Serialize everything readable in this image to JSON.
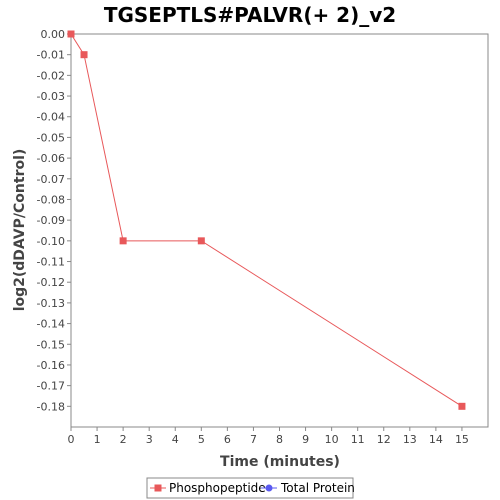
{
  "chart_data": {
    "type": "line",
    "title": "TGSEPTLS#PALVR(+ 2)_v2",
    "xlabel": "Time (minutes)",
    "ylabel": "log2(dDAVP/Control)",
    "xlim": [
      0,
      16
    ],
    "ylim": [
      -0.19,
      0.0
    ],
    "x_ticks": [
      0,
      1,
      2,
      3,
      4,
      5,
      6,
      7,
      8,
      9,
      10,
      11,
      12,
      13,
      14,
      15
    ],
    "y_ticks": [
      0.0,
      -0.01,
      -0.02,
      -0.03,
      -0.04,
      -0.05,
      -0.06,
      -0.07,
      -0.08,
      -0.09,
      -0.1,
      -0.11,
      -0.12,
      -0.13,
      -0.14,
      -0.15,
      -0.16,
      -0.17,
      -0.18
    ],
    "y_tick_decimals": 2,
    "grid": false,
    "legend_position": "bottom",
    "series": [
      {
        "name": "Phosphopeptide",
        "color": "#e8585a",
        "marker": "square",
        "x": [
          0,
          0.5,
          2,
          5,
          15
        ],
        "y": [
          0.0,
          -0.01,
          -0.1,
          -0.1,
          -0.18
        ]
      },
      {
        "name": "Total Protein",
        "color": "#5a5af0",
        "marker": "circle",
        "x": [],
        "y": []
      }
    ]
  }
}
